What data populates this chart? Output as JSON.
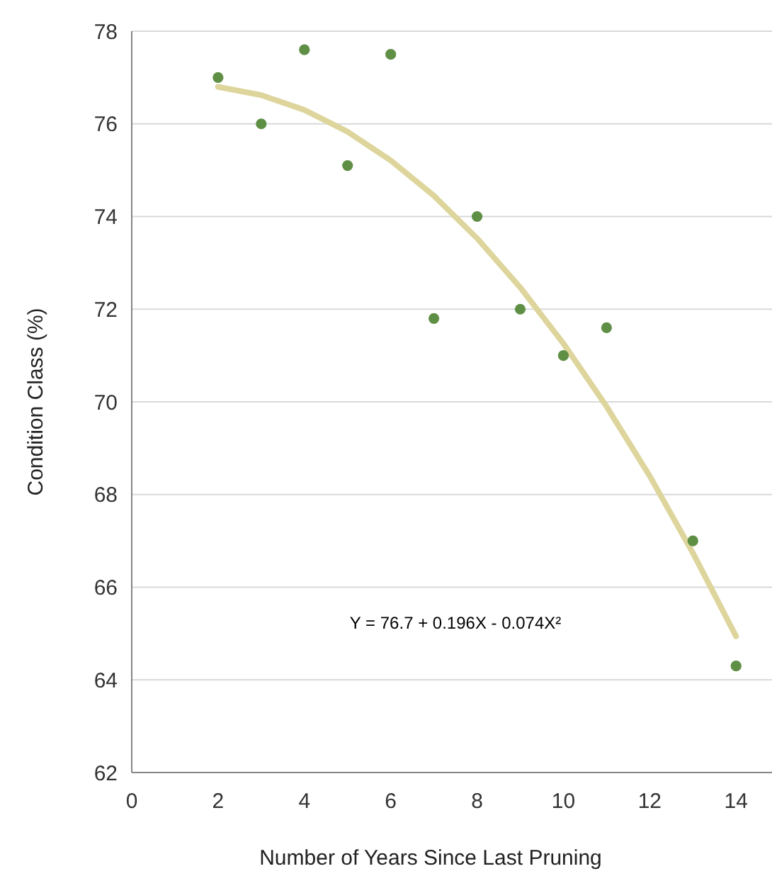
{
  "chart_data": {
    "type": "scatter",
    "xlabel": "Number of Years Since Last Pruning",
    "ylabel": "Condition Class (%)",
    "xlim": [
      0,
      14.8
    ],
    "xticks": [
      0,
      2,
      4,
      6,
      8,
      10,
      12,
      14
    ],
    "ylim": [
      62,
      78
    ],
    "yticks": [
      62,
      64,
      66,
      68,
      70,
      72,
      74,
      76,
      78
    ],
    "grid": "y",
    "marker": "circle",
    "series": [
      {
        "type": "scatter",
        "color": "#5e8f45",
        "x": [
          2,
          3,
          4,
          5,
          6,
          7,
          8,
          9,
          10,
          11,
          13,
          14
        ],
        "values": [
          77.0,
          76.0,
          77.6,
          75.1,
          77.5,
          71.8,
          74.0,
          72.0,
          71.0,
          71.6,
          67.0,
          64.3
        ]
      },
      {
        "type": "line",
        "color": "#ddd59c",
        "marker": "none",
        "x": [
          2,
          3,
          4,
          5,
          6,
          7,
          8,
          9,
          10,
          11,
          12,
          13,
          14
        ],
        "values": [
          76.8,
          76.62,
          76.3,
          75.83,
          75.21,
          74.45,
          73.53,
          72.47,
          71.26,
          69.9,
          68.4,
          66.74,
          64.94
        ]
      }
    ],
    "annotations": [
      "Y = 76.7 + 0.196X  -  0.074X²"
    ]
  }
}
